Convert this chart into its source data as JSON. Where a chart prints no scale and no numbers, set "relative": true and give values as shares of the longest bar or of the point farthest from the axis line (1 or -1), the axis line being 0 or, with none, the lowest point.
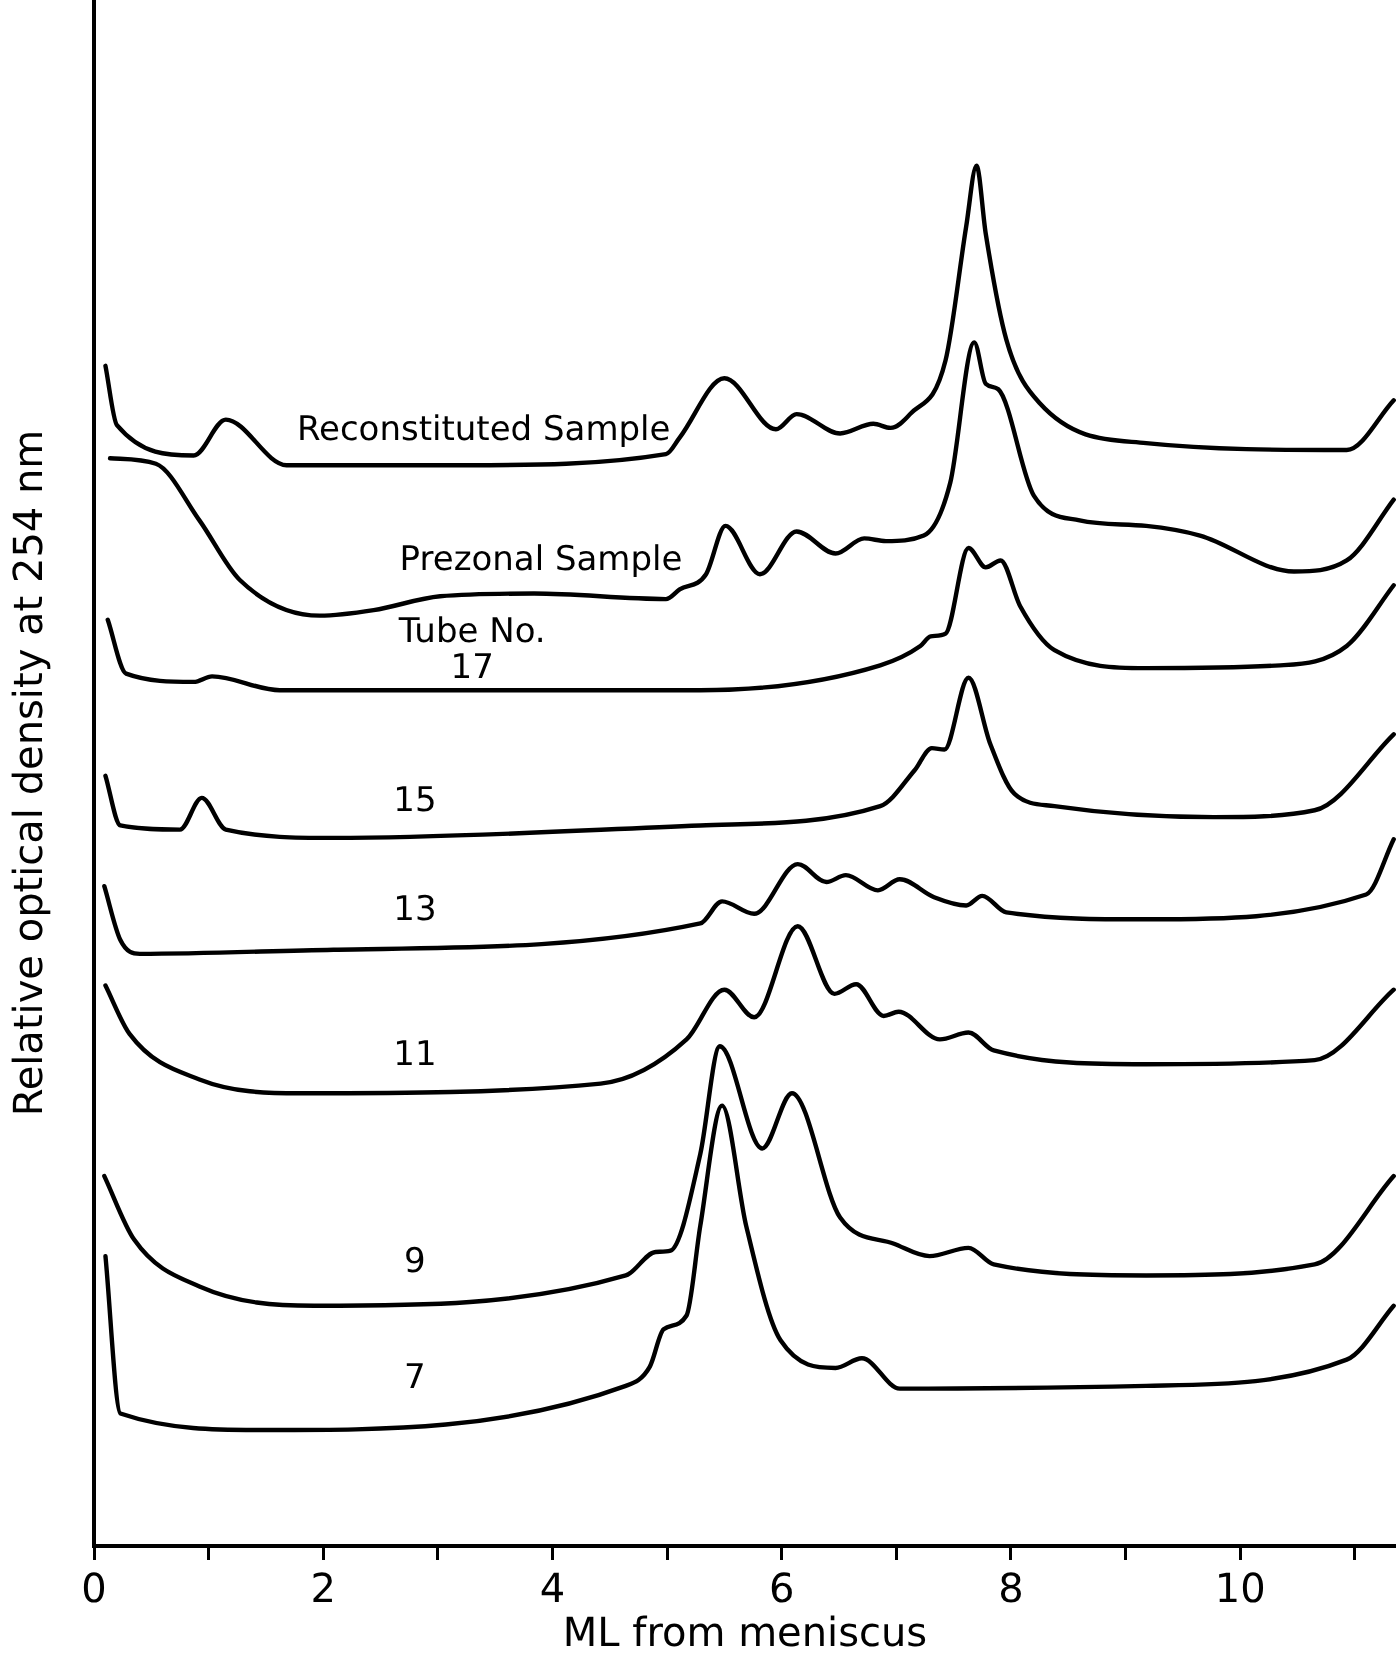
{
  "chart_data": {
    "type": "line",
    "relative": true,
    "xlabel": "ML from meniscus",
    "ylabel": "Relative optical density at 254 nm",
    "xlim": [
      0,
      11.36
    ],
    "xticks": [
      0,
      {
        "value": 1,
        "label": null
      },
      2,
      {
        "value": 3,
        "label": null
      },
      4,
      {
        "value": 5,
        "label": null
      },
      6,
      {
        "value": 7,
        "label": null
      },
      8,
      {
        "value": 9,
        "label": null
      },
      10,
      {
        "value": 11,
        "label": null
      }
    ],
    "grid": false,
    "legend": false,
    "marker": "none",
    "line_style": "solid",
    "annotations": [
      "Tube No."
    ],
    "series": [
      {
        "name": "Reconstituted Sample",
        "color": "#000000",
        "x": [
          0.1,
          0.2,
          0.87,
          1.15,
          1.68,
          3.25,
          4.99,
          5.11,
          5.5,
          5.95,
          6.13,
          6.51,
          6.8,
          6.95,
          7.12,
          7.43,
          7.61,
          7.7,
          7.78,
          7.96,
          8.25,
          9.18,
          10.93,
          11.34
        ],
        "values": [
          0.855,
          0.812,
          0.79,
          0.816,
          0.783,
          0.783,
          0.791,
          0.803,
          0.846,
          0.809,
          0.82,
          0.806,
          0.813,
          0.81,
          0.82,
          0.859,
          0.956,
          1.0,
          0.951,
          0.874,
          0.828,
          0.799,
          0.794,
          0.83
        ]
      },
      {
        "name": "Prezonal Sample",
        "color": "#000000",
        "x": [
          0.14,
          0.54,
          0.92,
          1.27,
          1.97,
          2.44,
          3.02,
          3.84,
          4.99,
          5.11,
          5.34,
          5.51,
          5.81,
          6.13,
          6.47,
          6.72,
          6.91,
          7.24,
          7.47,
          7.68,
          7.78,
          7.89,
          8.2,
          8.6,
          9.18,
          9.65,
          10.47,
          10.93,
          11.34
        ],
        "values": [
          0.788,
          0.784,
          0.743,
          0.7,
          0.674,
          0.678,
          0.688,
          0.69,
          0.686,
          0.693,
          0.704,
          0.739,
          0.704,
          0.735,
          0.719,
          0.73,
          0.728,
          0.732,
          0.77,
          0.872,
          0.842,
          0.838,
          0.761,
          0.743,
          0.739,
          0.732,
          0.706,
          0.714,
          0.758
        ]
      },
      {
        "name": "17",
        "color": "#000000",
        "x": [
          0.12,
          0.28,
          0.87,
          1.03,
          1.62,
          5.29,
          6.86,
          7.21,
          7.3,
          7.43,
          7.63,
          7.78,
          7.91,
          8.08,
          8.38,
          9.18,
          10.35,
          10.93,
          11.34
        ],
        "values": [
          0.671,
          0.632,
          0.626,
          0.63,
          0.62,
          0.62,
          0.638,
          0.652,
          0.659,
          0.661,
          0.723,
          0.709,
          0.714,
          0.681,
          0.649,
          0.636,
          0.638,
          0.652,
          0.696
        ]
      },
      {
        "name": "15",
        "color": "#000000",
        "x": [
          0.1,
          0.23,
          0.75,
          0.94,
          1.15,
          2.09,
          5.29,
          6.86,
          7.16,
          7.31,
          7.42,
          7.63,
          7.82,
          8.03,
          8.38,
          9.77,
          10.65,
          11.34
        ],
        "values": [
          0.558,
          0.522,
          0.519,
          0.542,
          0.519,
          0.513,
          0.522,
          0.536,
          0.562,
          0.578,
          0.577,
          0.629,
          0.581,
          0.545,
          0.536,
          0.528,
          0.533,
          0.588
        ]
      },
      {
        "name": "13",
        "color": "#000000",
        "x": [
          0.09,
          0.23,
          0.4,
          2.09,
          5.29,
          5.48,
          5.76,
          6.14,
          6.39,
          6.56,
          6.84,
          7.03,
          7.33,
          7.61,
          7.75,
          7.96,
          9.18,
          11.1,
          11.34
        ],
        "values": [
          0.478,
          0.439,
          0.429,
          0.432,
          0.451,
          0.467,
          0.458,
          0.494,
          0.481,
          0.486,
          0.475,
          0.483,
          0.47,
          0.464,
          0.471,
          0.459,
          0.454,
          0.472,
          0.512
        ]
      },
      {
        "name": "11",
        "color": "#000000",
        "x": [
          0.1,
          0.31,
          0.92,
          1.8,
          4.42,
          5.17,
          5.5,
          5.76,
          6.14,
          6.46,
          6.65,
          6.89,
          7.02,
          7.38,
          7.63,
          7.85,
          9.18,
          10.65,
          11.34
        ],
        "values": [
          0.406,
          0.371,
          0.338,
          0.328,
          0.335,
          0.367,
          0.403,
          0.383,
          0.449,
          0.4,
          0.407,
          0.384,
          0.387,
          0.367,
          0.372,
          0.359,
          0.349,
          0.352,
          0.403
        ]
      },
      {
        "name": "9",
        "color": "#000000",
        "x": [
          0.09,
          0.35,
          0.92,
          1.92,
          4.64,
          4.9,
          5.03,
          5.29,
          5.46,
          5.83,
          6.09,
          6.51,
          6.98,
          7.29,
          7.63,
          7.85,
          9.18,
          10.65,
          11.34
        ],
        "values": [
          0.268,
          0.222,
          0.188,
          0.174,
          0.196,
          0.213,
          0.214,
          0.284,
          0.362,
          0.288,
          0.328,
          0.238,
          0.219,
          0.21,
          0.216,
          0.204,
          0.196,
          0.204,
          0.268
        ]
      },
      {
        "name": "7",
        "color": "#000000",
        "x": [
          0.1,
          0.23,
          1.5,
          4.64,
          4.85,
          4.97,
          5.17,
          5.29,
          5.48,
          5.69,
          5.99,
          6.47,
          6.7,
          7.03,
          9.18,
          10.93,
          11.34
        ],
        "values": [
          0.21,
          0.096,
          0.084,
          0.116,
          0.13,
          0.157,
          0.167,
          0.232,
          0.319,
          0.232,
          0.149,
          0.129,
          0.136,
          0.114,
          0.116,
          0.135,
          0.174
        ]
      }
    ]
  }
}
